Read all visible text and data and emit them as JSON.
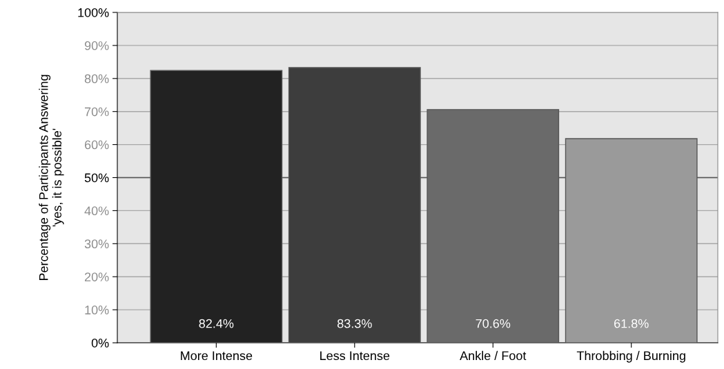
{
  "chart_data": {
    "type": "bar",
    "ylabel": "Percentage of Participants Answering\n'yes, it is possible'",
    "categories": [
      "More Intense",
      "Less Intense",
      "Ankle / Foot",
      "Throbbing / Burning"
    ],
    "values": [
      82.4,
      83.3,
      70.6,
      61.8
    ],
    "colors": [
      "#222222",
      "#3d3d3d",
      "#6a6a6a",
      "#9a9a9a"
    ],
    "value_labels": [
      "82.4%",
      "83.3%",
      "70.6%",
      "61.8%"
    ],
    "ylim": [
      0,
      100
    ],
    "yticks": [
      {
        "value": 0,
        "label": "0%"
      },
      {
        "value": 10,
        "label": "10%"
      },
      {
        "value": 20,
        "label": "20%"
      },
      {
        "value": 30,
        "label": "30%"
      },
      {
        "value": 40,
        "label": "40%"
      },
      {
        "value": 50,
        "label": "50%"
      },
      {
        "value": 60,
        "label": "60%"
      },
      {
        "value": 70,
        "label": "70%"
      },
      {
        "value": 80,
        "label": "80%"
      },
      {
        "value": 90,
        "label": "90%"
      },
      {
        "value": 100,
        "label": "100%"
      }
    ],
    "ref_lines": [
      {
        "axis": "y",
        "value": 50,
        "color": "#555555"
      }
    ],
    "grid": "y",
    "legend": false
  }
}
